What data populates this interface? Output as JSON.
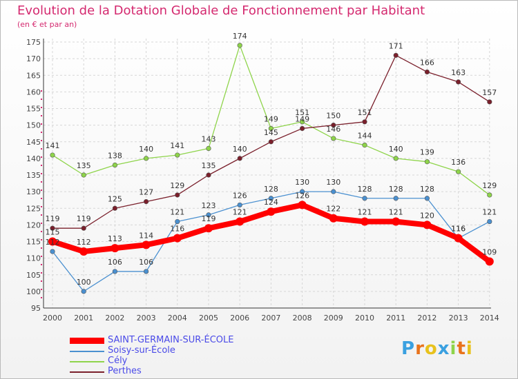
{
  "header": {
    "title": "Evolution de la Dotation Globale de Fonctionnement par Habitant",
    "subtitle": "(en € et par an)"
  },
  "logo": {
    "text": "Proxiti"
  },
  "chart_data": {
    "type": "line",
    "title": "Evolution de la Dotation Globale de Fonctionnement par Habitant",
    "subtitle": "(en € et par an)",
    "x": [
      "2000",
      "2001",
      "2002",
      "2003",
      "2004",
      "2005",
      "2006",
      "2007",
      "2008",
      "2009",
      "2010",
      "2011",
      "2012",
      "2013",
      "2014"
    ],
    "ylim": [
      95,
      175
    ],
    "yticks": [
      95,
      100,
      105,
      110,
      115,
      120,
      125,
      130,
      135,
      140,
      145,
      150,
      155,
      160,
      165,
      170,
      175
    ],
    "grid": true,
    "legend_position": "bottom-left",
    "series": [
      {
        "name": "SAINT-GERMAIN-SUR-ÉCOLE",
        "color": "#ff0000",
        "values": [
          115,
          112,
          113,
          114,
          116,
          119,
          121,
          124,
          126,
          122,
          121,
          121,
          120,
          116,
          109
        ]
      },
      {
        "name": "Soisy-sur-École",
        "color": "#4a90d0",
        "values": [
          112,
          100,
          106,
          106,
          121,
          123,
          126,
          128,
          130,
          130,
          128,
          128,
          128,
          116,
          121
        ]
      },
      {
        "name": "Cély",
        "color": "#8ed44a",
        "values": [
          141,
          135,
          138,
          140,
          141,
          143,
          174,
          149,
          151,
          146,
          144,
          140,
          139,
          136,
          129
        ]
      },
      {
        "name": "Perthes",
        "color": "#7a1f2b",
        "values": [
          119,
          119,
          125,
          127,
          129,
          135,
          140,
          145,
          149,
          150,
          151,
          171,
          166,
          163,
          157
        ]
      }
    ]
  }
}
